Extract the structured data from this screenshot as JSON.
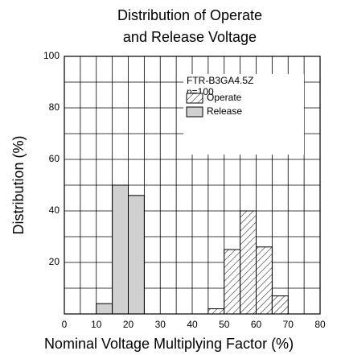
{
  "chart_data": {
    "type": "histogram",
    "title": [
      "Distribution of Operate",
      "and Release Voltage"
    ],
    "xlabel": "Nominal Voltage Multiplying Factor (%)",
    "ylabel": "Distribution (%)",
    "annotations": [
      "FTR-B3GA4.5Z",
      "n=100"
    ],
    "bins": [
      10,
      15,
      20,
      25,
      30,
      35,
      40,
      45,
      50,
      55,
      60,
      65,
      70
    ],
    "series": [
      {
        "name": "Operate",
        "color": "#000000",
        "values": [
          0,
          0,
          0,
          0,
          0,
          0,
          0,
          2,
          25,
          40,
          26,
          7
        ]
      },
      {
        "name": "Release",
        "color": "#d0d0d0",
        "values": [
          4,
          50,
          46,
          0,
          0,
          0,
          0,
          0,
          0,
          0,
          0,
          0
        ]
      }
    ],
    "xlim": [
      0,
      80
    ],
    "xticks": [
      0,
      10,
      20,
      30,
      40,
      50,
      60,
      70,
      80
    ],
    "ylim": [
      0,
      100
    ],
    "yticks": [
      20,
      40,
      60,
      80,
      100
    ],
    "grid": true
  }
}
